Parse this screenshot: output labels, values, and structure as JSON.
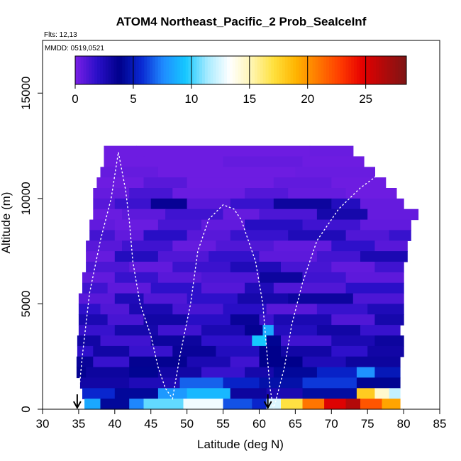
{
  "chart_data": {
    "type": "heatmap",
    "title": "ATOM4 Northeast_Pacific_2 Prob_SeaIceInf",
    "annotations": [
      "Flts: 12,13",
      "MMDD: 0519,0521"
    ],
    "xlabel": "Latitude (deg N)",
    "ylabel": "Altitude (m)",
    "xlim": [
      30,
      85
    ],
    "ylim": [
      0,
      17500
    ],
    "xticks": [
      "30",
      "35",
      "40",
      "45",
      "50",
      "55",
      "60",
      "65",
      "70",
      "75",
      "80",
      "85"
    ],
    "yticks": [
      "0",
      "5000",
      "10000",
      "15000"
    ],
    "colorbar": {
      "range": [
        0,
        28.5
      ],
      "ticks": [
        "0",
        "5",
        "10",
        "15",
        "20",
        "25"
      ],
      "tick_values": [
        0,
        5,
        10,
        15,
        20,
        25
      ],
      "colors": [
        "#7a1fe6",
        "#2a0fc8",
        "#00008b",
        "#0a28d2",
        "#1f8cff",
        "#15c8ff",
        "#a8ebff",
        "#ffffff",
        "#fff5b0",
        "#ffe03c",
        "#ffb400",
        "#ff7800",
        "#ff3c00",
        "#e60000",
        "#b00a0a",
        "#7d1515"
      ]
    },
    "flight_tracks": [
      {
        "lat": [
          34.8,
          35.5,
          36.5,
          38.0,
          39.5,
          40.5,
          41.5,
          42.0,
          42.5,
          43.5,
          45.0,
          46.0,
          47.0,
          48.0,
          49.0,
          50.5,
          51.5,
          53.0,
          55.0,
          56.5,
          57.5,
          58.5,
          59.5,
          60.5,
          61.0,
          61.5,
          62.0,
          63.5,
          64.5,
          66.0,
          68.0,
          71.0,
          74.0,
          76.0,
          78.5,
          79.5
        ],
        "alt": [
          0,
          2500,
          5500,
          8000,
          10000,
          12200,
          10400,
          9000,
          7000,
          5000,
          3500,
          2000,
          1000,
          500,
          2500,
          5000,
          7500,
          9000,
          9700,
          9500,
          9000,
          8000,
          7000,
          5000,
          3000,
          1000,
          0,
          2000,
          4000,
          6000,
          8000,
          9500,
          10500,
          11000,
          12000,
          11500
        ]
      }
    ],
    "arrows_at_lat": [
      34.8,
      61.2
    ],
    "grid": false,
    "rows": [
      {
        "alt": [
          12000,
          12500
        ],
        "segs": [
          [
            38.5,
            43,
            0.3
          ],
          [
            43,
            67,
            0.3
          ],
          [
            67,
            73,
            0.4
          ]
        ]
      },
      {
        "alt": [
          11500,
          12000
        ],
        "segs": [
          [
            38.5,
            44,
            0.3
          ],
          [
            44,
            55,
            0.3
          ],
          [
            55,
            66,
            0.5
          ],
          [
            66,
            74.5,
            0.3
          ]
        ]
      },
      {
        "alt": [
          11000,
          11500
        ],
        "segs": [
          [
            38,
            46,
            0.5
          ],
          [
            46,
            54,
            0.3
          ],
          [
            54,
            65,
            0.3
          ],
          [
            65,
            76,
            0.4
          ]
        ]
      },
      {
        "alt": [
          10500,
          11000
        ],
        "segs": [
          [
            37.5,
            44,
            0.3
          ],
          [
            44,
            50,
            0.8
          ],
          [
            50,
            62,
            0.3
          ],
          [
            62,
            70,
            0.6
          ],
          [
            70,
            77.5,
            0.3
          ]
        ]
      },
      {
        "alt": [
          10000,
          10500
        ],
        "segs": [
          [
            37,
            42,
            0.5
          ],
          [
            42,
            48,
            1.2
          ],
          [
            48,
            58,
            0.4
          ],
          [
            58,
            64,
            0.9
          ],
          [
            64,
            72,
            0.5
          ],
          [
            72,
            79,
            0.3
          ]
        ]
      },
      {
        "alt": [
          9500,
          10000
        ],
        "segs": [
          [
            37,
            40,
            0.8
          ],
          [
            40,
            45,
            1.5
          ],
          [
            45,
            50,
            3.5
          ],
          [
            50,
            56,
            0.8
          ],
          [
            56,
            62,
            1.6
          ],
          [
            62,
            70,
            3.2
          ],
          [
            70,
            74,
            2.2
          ],
          [
            74,
            80,
            0.5
          ]
        ]
      },
      {
        "alt": [
          9000,
          9500
        ],
        "segs": [
          [
            37,
            41,
            0.4
          ],
          [
            41,
            47,
            0.7
          ],
          [
            47,
            55,
            1.4
          ],
          [
            55,
            60,
            0.5
          ],
          [
            60,
            68,
            1.1
          ],
          [
            68,
            75,
            2.8
          ],
          [
            75,
            82,
            0.5
          ]
        ]
      },
      {
        "alt": [
          8500,
          9000
        ],
        "segs": [
          [
            36.5,
            40,
            0.6
          ],
          [
            40,
            46,
            0.4
          ],
          [
            46,
            52,
            1.2
          ],
          [
            52,
            58,
            0.6
          ],
          [
            58,
            66,
            2.1
          ],
          [
            66,
            74,
            1.4
          ],
          [
            74,
            81,
            0.6
          ]
        ]
      },
      {
        "alt": [
          8000,
          8500
        ],
        "segs": [
          [
            36.5,
            40,
            1.3
          ],
          [
            40,
            44,
            0.6
          ],
          [
            44,
            50,
            2.0
          ],
          [
            50,
            56,
            0.8
          ],
          [
            56,
            64,
            1.6
          ],
          [
            64,
            72,
            2.4
          ],
          [
            72,
            78,
            1.0
          ],
          [
            78,
            81,
            1.6
          ]
        ]
      },
      {
        "alt": [
          7500,
          8000
        ],
        "segs": [
          [
            36,
            41,
            0.8
          ],
          [
            41,
            48,
            1.4
          ],
          [
            48,
            54,
            0.5
          ],
          [
            54,
            62,
            1.0
          ],
          [
            62,
            70,
            0.6
          ],
          [
            70,
            76,
            1.8
          ],
          [
            76,
            80.5,
            0.8
          ]
        ]
      },
      {
        "alt": [
          7000,
          7500
        ],
        "segs": [
          [
            36,
            40,
            0.5
          ],
          [
            40,
            46,
            2.2
          ],
          [
            46,
            53,
            1.0
          ],
          [
            53,
            60,
            1.7
          ],
          [
            60,
            68,
            0.7
          ],
          [
            68,
            74,
            1.3
          ],
          [
            74,
            80.5,
            2.6
          ]
        ]
      },
      {
        "alt": [
          6500,
          7000
        ],
        "segs": [
          [
            36,
            42,
            1.1
          ],
          [
            42,
            48,
            0.6
          ],
          [
            48,
            56,
            1.5
          ],
          [
            56,
            63,
            2.4
          ],
          [
            63,
            70,
            1.2
          ],
          [
            70,
            76,
            0.6
          ],
          [
            76,
            80,
            1.4
          ]
        ]
      },
      {
        "alt": [
          6000,
          6500
        ],
        "segs": [
          [
            35.5,
            40,
            0.6
          ],
          [
            40,
            46,
            1.6
          ],
          [
            46,
            52,
            0.8
          ],
          [
            52,
            60,
            1.1
          ],
          [
            60,
            66,
            3.2
          ],
          [
            66,
            72,
            1.4
          ],
          [
            72,
            80,
            0.7
          ]
        ]
      },
      {
        "alt": [
          5500,
          6000
        ],
        "segs": [
          [
            35.5,
            39,
            1.4
          ],
          [
            39,
            45,
            0.7
          ],
          [
            45,
            52,
            1.8
          ],
          [
            52,
            58,
            0.9
          ],
          [
            58,
            62,
            2.4
          ],
          [
            62,
            72,
            1.0
          ],
          [
            72,
            80,
            1.9
          ]
        ]
      },
      {
        "alt": [
          5000,
          5500
        ],
        "segs": [
          [
            35,
            40,
            0.8
          ],
          [
            40,
            44,
            2.4
          ],
          [
            44,
            50,
            1.0
          ],
          [
            50,
            57,
            1.8
          ],
          [
            57,
            64,
            2.8
          ],
          [
            64,
            73,
            3.2
          ],
          [
            73,
            80,
            1.1
          ]
        ]
      },
      {
        "alt": [
          4500,
          5000
        ],
        "segs": [
          [
            35,
            38,
            1.8
          ],
          [
            38,
            42,
            1.0
          ],
          [
            42,
            48,
            2.6
          ],
          [
            48,
            55,
            1.2
          ],
          [
            55,
            61,
            2.0
          ],
          [
            61,
            68,
            0.8
          ],
          [
            68,
            75,
            1.6
          ],
          [
            75,
            80,
            2.4
          ]
        ]
      },
      {
        "alt": [
          4000,
          4500
        ],
        "segs": [
          [
            35,
            39,
            2.6
          ],
          [
            39,
            44,
            1.2
          ],
          [
            44,
            50,
            3.0
          ],
          [
            50,
            56,
            2.0
          ],
          [
            56,
            60,
            3.4
          ],
          [
            60,
            62,
            1.5
          ],
          [
            62,
            70,
            2.6
          ],
          [
            70,
            76,
            1.0
          ],
          [
            76,
            80,
            2.8
          ]
        ]
      },
      {
        "alt": [
          3500,
          4000
        ],
        "segs": [
          [
            35,
            40,
            1.6
          ],
          [
            40,
            46,
            2.8
          ],
          [
            46,
            52,
            1.4
          ],
          [
            52,
            58,
            2.6
          ],
          [
            58,
            60.5,
            3.6
          ],
          [
            60.5,
            62,
            8.5
          ],
          [
            62,
            68,
            2.2
          ],
          [
            68,
            74,
            3.0
          ],
          [
            74,
            79.5,
            1.6
          ]
        ]
      },
      {
        "alt": [
          3000,
          3500
        ],
        "segs": [
          [
            34.8,
            38,
            3.0
          ],
          [
            38,
            45,
            1.4
          ],
          [
            45,
            52,
            3.2
          ],
          [
            52,
            59,
            1.8
          ],
          [
            59,
            61,
            9.5
          ],
          [
            61,
            63,
            4.0
          ],
          [
            63,
            70,
            1.4
          ],
          [
            70,
            76,
            2.6
          ],
          [
            76,
            80,
            3.2
          ]
        ]
      },
      {
        "alt": [
          2500,
          3000
        ],
        "segs": [
          [
            34.8,
            37,
            1.8
          ],
          [
            37,
            42,
            3.0
          ],
          [
            42,
            48,
            1.6
          ],
          [
            48,
            54,
            3.4
          ],
          [
            54,
            60,
            2.2
          ],
          [
            60,
            63,
            3.8
          ],
          [
            63,
            70,
            3.0
          ],
          [
            70,
            75,
            1.8
          ],
          [
            75,
            80,
            3.0
          ]
        ]
      },
      {
        "alt": [
          2000,
          2500
        ],
        "segs": [
          [
            34.7,
            37,
            3.4
          ],
          [
            37,
            42,
            1.6
          ],
          [
            42,
            50,
            3.6
          ],
          [
            50,
            56,
            2.6
          ],
          [
            56,
            60,
            1.4
          ],
          [
            60,
            66,
            3.8
          ],
          [
            66,
            72,
            2.4
          ],
          [
            72,
            79.5,
            3.2
          ]
        ]
      },
      {
        "alt": [
          1500,
          2000
        ],
        "segs": [
          [
            34.7,
            36,
            3.6
          ],
          [
            36,
            42,
            3.2
          ],
          [
            42,
            46,
            4.0
          ],
          [
            46,
            52,
            3.0
          ],
          [
            52,
            58,
            1.6
          ],
          [
            58,
            62,
            2.8
          ],
          [
            62,
            68,
            4.2
          ],
          [
            68,
            73.5,
            5.4
          ],
          [
            73.5,
            76,
            7.8
          ],
          [
            76,
            79.5,
            5.0
          ]
        ]
      },
      {
        "alt": [
          1000,
          1500
        ],
        "segs": [
          [
            35.2,
            42,
            3.0
          ],
          [
            42,
            49,
            2.4
          ],
          [
            49,
            55,
            6.8
          ],
          [
            55,
            60,
            5.4
          ],
          [
            60,
            66,
            4.6
          ],
          [
            66,
            73.5,
            6.0
          ],
          [
            73.5,
            79.5,
            4.0
          ]
        ]
      },
      {
        "alt": [
          500,
          1000
        ],
        "segs": [
          [
            35.5,
            40,
            5.6
          ],
          [
            40,
            46,
            4.2
          ],
          [
            46,
            50,
            8.0
          ],
          [
            50,
            56,
            9.0
          ],
          [
            56,
            61,
            3.2
          ],
          [
            61,
            66,
            2.6
          ],
          [
            66,
            73.5,
            4.4
          ],
          [
            73.5,
            76,
            18.0
          ],
          [
            76,
            78,
            14.5
          ],
          [
            78,
            79.5,
            12.0
          ]
        ]
      },
      {
        "alt": [
          0,
          500
        ],
        "segs": [
          [
            35.8,
            38,
            8.5
          ],
          [
            38,
            42,
            4.2
          ],
          [
            42,
            44,
            7.5
          ],
          [
            44,
            49.5,
            10.5
          ],
          [
            49.5,
            55,
            13.0
          ],
          [
            55,
            59,
            6.5
          ],
          [
            59,
            61,
            5.5
          ],
          [
            61,
            63,
            12.5
          ],
          [
            63,
            66,
            17.0
          ],
          [
            66,
            69,
            21.0
          ],
          [
            69,
            72,
            25.0
          ],
          [
            72,
            74,
            26.5
          ],
          [
            74,
            77,
            22.0
          ],
          [
            77,
            79.5,
            19.5
          ]
        ]
      }
    ]
  }
}
